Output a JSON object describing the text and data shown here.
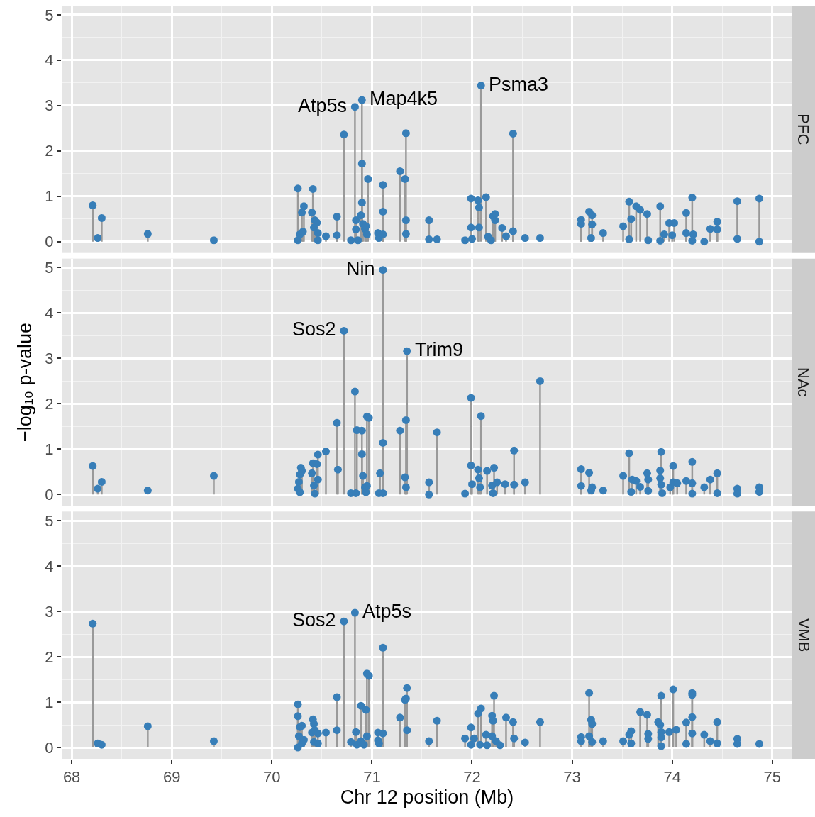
{
  "chart_data": [
    {
      "type": "lollipop",
      "title": "PFC",
      "color": "#377eb8",
      "marker": "circle",
      "grid": true,
      "tick_labels": "y",
      "xlim": [
        67.9,
        75.2
      ],
      "xticks": [
        68,
        69,
        70,
        71,
        72,
        73,
        74,
        75
      ],
      "ylim": [
        -0.25,
        5.2
      ],
      "yticks": [
        0,
        1,
        2,
        3,
        4,
        5
      ],
      "x": [
        68.21,
        68.26,
        68.3,
        68.76,
        69.42,
        70.26,
        70.26,
        70.28,
        70.3,
        70.32,
        70.31,
        70.41,
        70.4,
        70.43,
        70.42,
        70.45,
        70.46,
        70.46,
        70.54,
        70.65,
        70.65,
        70.72,
        70.79,
        70.83,
        70.84,
        70.84,
        70.86,
        70.89,
        70.9,
        70.9,
        70.9,
        70.91,
        70.93,
        70.95,
        70.96,
        70.94,
        71.06,
        71.07,
        71.11,
        71.11,
        71.11,
        71.28,
        71.34,
        71.33,
        71.34,
        71.34,
        71.57,
        71.57,
        71.65,
        71.93,
        71.99,
        71.99,
        72.0,
        72.06,
        72.07,
        72.07,
        72.09,
        72.14,
        72.16,
        72.19,
        72.21,
        72.23,
        72.23,
        72.3,
        72.34,
        72.41,
        72.41,
        72.53,
        72.68,
        73.09,
        73.09,
        73.17,
        73.19,
        73.2,
        73.2,
        73.31,
        73.51,
        73.57,
        73.59,
        73.57,
        73.64,
        73.68,
        73.75,
        73.76,
        73.88,
        73.88,
        73.92,
        73.97,
        74.02,
        74.0,
        74.14,
        74.14,
        74.2,
        74.2,
        74.21,
        74.32,
        74.38,
        74.45,
        74.45,
        74.65,
        74.65,
        74.87,
        74.87
      ],
      "values": [
        0.8,
        0.08,
        0.52,
        0.17,
        0.03,
        1.17,
        0.03,
        0.16,
        0.64,
        0.78,
        0.22,
        1.16,
        0.64,
        0.47,
        0.31,
        0.42,
        0.19,
        0.03,
        0.12,
        0.14,
        0.55,
        2.36,
        0.03,
        2.97,
        0.47,
        0.27,
        0.03,
        0.58,
        3.12,
        1.72,
        0.86,
        0.39,
        0.28,
        0.16,
        1.38,
        0.34,
        0.19,
        0.08,
        0.66,
        1.25,
        0.16,
        1.55,
        2.39,
        1.38,
        0.47,
        0.17,
        0.47,
        0.05,
        0.05,
        0.03,
        0.95,
        0.31,
        0.06,
        0.91,
        0.75,
        0.31,
        3.44,
        0.98,
        0.11,
        0.03,
        0.56,
        0.61,
        0.47,
        0.3,
        0.12,
        2.38,
        0.23,
        0.08,
        0.08,
        0.48,
        0.39,
        0.66,
        0.08,
        0.58,
        0.38,
        0.19,
        0.34,
        0.88,
        0.5,
        0.05,
        0.78,
        0.7,
        0.61,
        0.03,
        0.78,
        0.02,
        0.16,
        0.41,
        0.41,
        0.14,
        0.63,
        0.19,
        0.97,
        0.02,
        0.16,
        0.0,
        0.28,
        0.44,
        0.27,
        0.89,
        0.06,
        0.95,
        0.0
      ],
      "annotations": [
        {
          "text": "Atp5s",
          "x": 70.83,
          "y": 2.97
        },
        {
          "text": "Map4k5",
          "x": 70.9,
          "y": 3.12
        },
        {
          "text": "Psma3",
          "x": 72.09,
          "y": 3.44
        }
      ]
    },
    {
      "type": "lollipop",
      "title": "NAc",
      "ylabel": "−log₁₀ p-value",
      "color": "#377eb8",
      "marker": "circle",
      "grid": true,
      "tick_labels": "y",
      "xlim": [
        67.9,
        75.2
      ],
      "xticks": [
        68,
        69,
        70,
        71,
        72,
        73,
        74,
        75
      ],
      "ylim": [
        -0.25,
        5.2
      ],
      "yticks": [
        0,
        1,
        2,
        3,
        4,
        5
      ],
      "x": [
        68.21,
        68.26,
        68.3,
        68.76,
        69.42,
        70.26,
        70.27,
        70.28,
        70.29,
        70.28,
        70.3,
        70.41,
        70.4,
        70.42,
        70.43,
        70.45,
        70.46,
        70.46,
        70.54,
        70.65,
        70.66,
        70.72,
        70.79,
        70.83,
        70.85,
        70.84,
        70.9,
        70.9,
        70.91,
        70.93,
        70.94,
        70.95,
        70.95,
        70.97,
        71.11,
        71.11,
        71.08,
        71.07,
        71.11,
        71.28,
        71.35,
        71.34,
        71.33,
        71.34,
        71.57,
        71.57,
        71.65,
        71.93,
        71.99,
        71.99,
        72.0,
        72.09,
        72.06,
        72.07,
        72.08,
        72.15,
        72.2,
        72.21,
        72.22,
        72.25,
        72.33,
        72.42,
        72.42,
        72.53,
        72.68,
        73.09,
        73.09,
        73.17,
        73.19,
        73.2,
        73.31,
        73.51,
        73.57,
        73.59,
        73.6,
        73.64,
        73.68,
        73.75,
        73.76,
        73.76,
        73.89,
        73.88,
        73.88,
        73.89,
        73.9,
        73.98,
        74.01,
        74.01,
        74.05,
        74.14,
        74.2,
        74.2,
        74.2,
        74.32,
        74.38,
        74.45,
        74.45,
        74.65,
        74.65,
        74.87,
        74.87
      ],
      "values": [
        0.63,
        0.13,
        0.28,
        0.09,
        0.41,
        0.13,
        0.28,
        0.44,
        0.59,
        0.05,
        0.52,
        0.69,
        0.47,
        0.2,
        0.02,
        0.67,
        0.33,
        0.88,
        0.95,
        1.58,
        0.55,
        3.61,
        0.03,
        2.27,
        1.42,
        0.03,
        1.41,
        0.89,
        0.41,
        0.16,
        0.05,
        0.19,
        1.72,
        1.69,
        4.95,
        1.14,
        0.47,
        0.03,
        0.03,
        1.41,
        3.16,
        1.64,
        0.38,
        0.16,
        0.27,
        0.0,
        1.37,
        0.02,
        2.13,
        0.64,
        0.23,
        1.73,
        0.55,
        0.36,
        0.16,
        0.52,
        0.2,
        0.03,
        0.59,
        0.27,
        0.23,
        0.97,
        0.22,
        0.27,
        2.5,
        0.56,
        0.19,
        0.48,
        0.09,
        0.16,
        0.09,
        0.41,
        0.91,
        0.06,
        0.33,
        0.3,
        0.17,
        0.47,
        0.33,
        0.08,
        0.94,
        0.53,
        0.36,
        0.22,
        0.03,
        0.16,
        0.63,
        0.27,
        0.25,
        0.3,
        0.72,
        0.25,
        0.02,
        0.16,
        0.33,
        0.47,
        0.03,
        0.13,
        0.02,
        0.16,
        0.06
      ],
      "annotations": [
        {
          "text": "Nin",
          "x": 71.11,
          "y": 4.95
        },
        {
          "text": "Sos2",
          "x": 70.72,
          "y": 3.61
        },
        {
          "text": "Trim9",
          "x": 71.35,
          "y": 3.16
        }
      ]
    },
    {
      "type": "lollipop",
      "title": "VMB",
      "xlabel": "Chr 12 position (Mb)",
      "color": "#377eb8",
      "marker": "circle",
      "grid": true,
      "xlim": [
        67.9,
        75.2
      ],
      "xticks": [
        68,
        69,
        70,
        71,
        72,
        73,
        74,
        75
      ],
      "ylim": [
        -0.25,
        5.2
      ],
      "yticks": [
        0,
        1,
        2,
        3,
        4,
        5
      ],
      "x": [
        68.21,
        68.26,
        68.3,
        68.76,
        69.42,
        70.26,
        70.26,
        70.28,
        70.3,
        70.27,
        70.26,
        70.3,
        70.32,
        70.41,
        70.42,
        70.4,
        70.43,
        70.42,
        70.46,
        70.46,
        70.54,
        70.65,
        70.65,
        70.72,
        70.79,
        70.83,
        70.84,
        70.85,
        70.89,
        70.89,
        70.94,
        70.95,
        70.95,
        70.97,
        70.92,
        71.06,
        71.06,
        71.11,
        71.11,
        71.07,
        71.28,
        71.35,
        71.34,
        71.33,
        71.35,
        71.57,
        71.65,
        71.93,
        71.99,
        71.99,
        72.02,
        72.06,
        72.09,
        72.08,
        72.14,
        72.15,
        72.2,
        72.21,
        72.22,
        72.2,
        72.24,
        72.28,
        72.34,
        72.41,
        72.42,
        72.53,
        72.68,
        73.09,
        73.09,
        73.17,
        73.19,
        73.2,
        73.17,
        73.2,
        73.31,
        73.51,
        73.57,
        73.59,
        73.59,
        73.68,
        73.75,
        73.76,
        73.76,
        73.86,
        73.89,
        73.88,
        73.89,
        73.89,
        73.89,
        73.97,
        74.01,
        74.04,
        74.14,
        74.14,
        74.2,
        74.2,
        74.2,
        74.2,
        74.32,
        74.38,
        74.45,
        74.45,
        74.65,
        74.65,
        74.87
      ],
      "values": [
        2.73,
        0.09,
        0.06,
        0.47,
        0.14,
        0.95,
        0.69,
        0.45,
        0.48,
        0.25,
        0.0,
        0.09,
        0.17,
        0.62,
        0.52,
        0.33,
        0.38,
        0.12,
        0.31,
        0.09,
        0.33,
        1.11,
        0.38,
        2.78,
        0.12,
        2.97,
        0.34,
        0.06,
        0.92,
        0.14,
        0.83,
        0.25,
        1.63,
        1.58,
        0.06,
        0.16,
        0.33,
        0.31,
        2.2,
        0.09,
        0.66,
        1.31,
        1.08,
        1.05,
        0.38,
        0.14,
        0.59,
        0.2,
        0.44,
        0.06,
        0.2,
        0.75,
        0.86,
        0.06,
        0.28,
        0.05,
        0.25,
        0.59,
        1.14,
        0.7,
        0.14,
        0.05,
        0.66,
        0.56,
        0.2,
        0.11,
        0.56,
        0.23,
        0.14,
        1.2,
        0.61,
        0.52,
        0.25,
        0.12,
        0.14,
        0.14,
        0.28,
        0.36,
        0.09,
        0.78,
        0.72,
        0.3,
        0.19,
        0.56,
        1.14,
        0.5,
        0.34,
        0.22,
        0.03,
        0.34,
        1.28,
        0.39,
        0.08,
        0.55,
        0.67,
        1.16,
        1.2,
        0.31,
        0.28,
        0.14,
        0.56,
        0.09,
        0.19,
        0.08,
        0.08
      ],
      "annotations": [
        {
          "text": "Sos2",
          "x": 70.72,
          "y": 2.78
        },
        {
          "text": "Atp5s",
          "x": 70.83,
          "y": 2.97
        }
      ]
    }
  ]
}
